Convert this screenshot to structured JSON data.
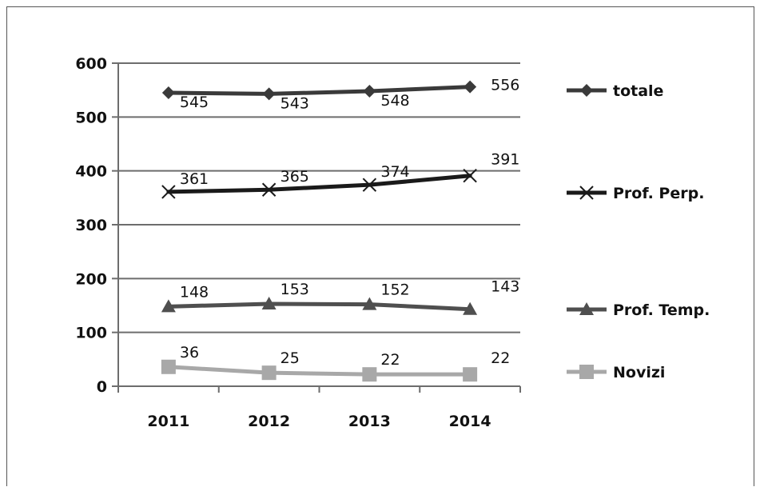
{
  "chart_data": {
    "type": "line",
    "categories": [
      "2011",
      "2012",
      "2013",
      "2014"
    ],
    "ylim": [
      0,
      600
    ],
    "yticks": [
      0,
      100,
      200,
      300,
      400,
      500,
      600
    ],
    "grid": "horizontal",
    "legend_position": "right",
    "series": [
      {
        "name": "totale",
        "values": [
          545,
          543,
          548,
          556
        ],
        "color": "#3a3a3a",
        "marker": "diamond"
      },
      {
        "name": "Prof. Perp.",
        "values": [
          361,
          365,
          374,
          391
        ],
        "color": "#1a1a1a",
        "marker": "x"
      },
      {
        "name": "Prof. Temp.",
        "values": [
          148,
          153,
          152,
          143
        ],
        "color": "#4f4f4f",
        "marker": "triangle"
      },
      {
        "name": "Novizi",
        "values": [
          36,
          25,
          22,
          22
        ],
        "color": "#a8a8a8",
        "marker": "square"
      }
    ]
  }
}
